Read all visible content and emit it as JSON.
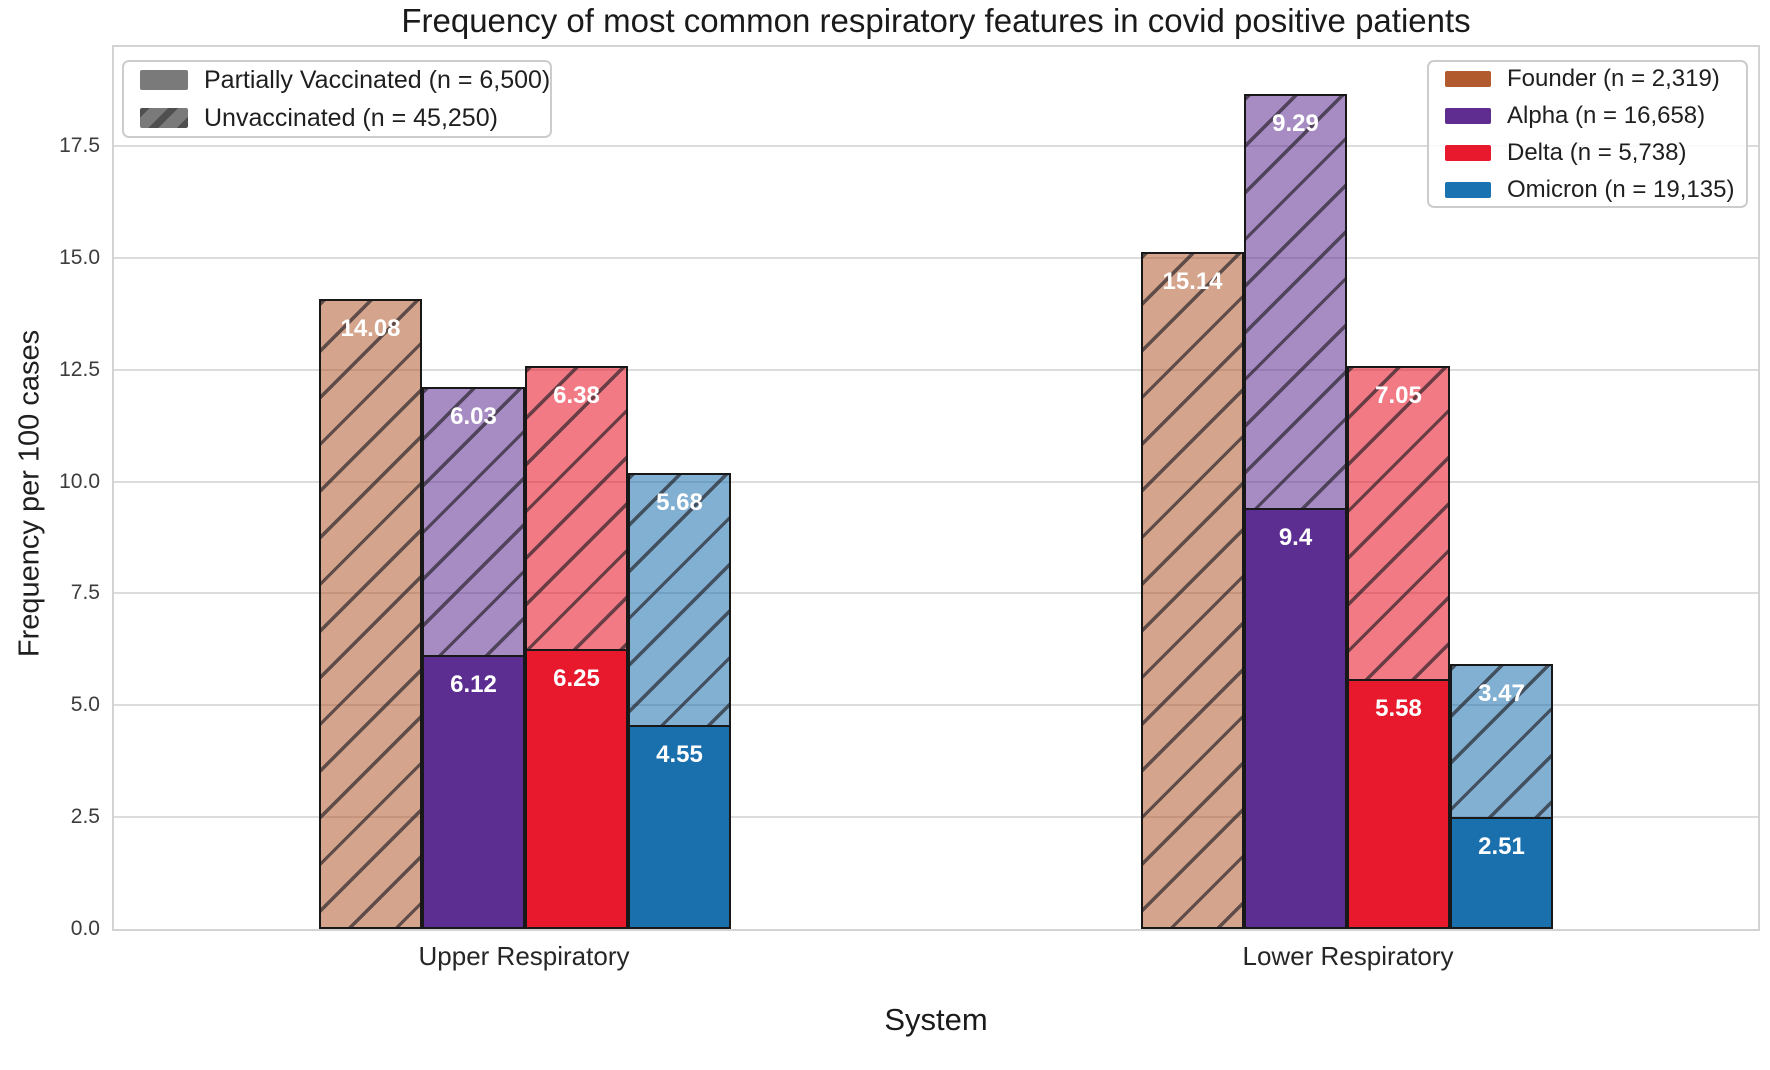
{
  "chart_data": {
    "type": "bar",
    "stacked": true,
    "title": "Frequency of most common respiratory features in covid positive patients",
    "xlabel": "System",
    "ylabel": "Frequency per 100 cases",
    "categories": [
      "Upper Respiratory",
      "Lower Respiratory"
    ],
    "ylim": [
      0,
      19.8
    ],
    "yticks": [
      0.0,
      2.5,
      5.0,
      7.5,
      10.0,
      12.5,
      15.0,
      17.5
    ],
    "grid": true,
    "legend_vaccination": {
      "items": [
        {
          "label": "Partially Vaccinated (n = 6,500)",
          "style": "solid",
          "color": "#7a7a7a"
        },
        {
          "label": "Unvaccinated (n = 45,250)",
          "style": "hatched",
          "color": "#7a7a7a"
        }
      ],
      "position": "upper-left"
    },
    "legend_variants": {
      "items": [
        {
          "label": "Founder (n = 2,319)",
          "color": "#b05a2e"
        },
        {
          "label": "Alpha (n = 16,658)",
          "color": "#5f2d90"
        },
        {
          "label": "Delta (n = 5,738)",
          "color": "#e8192c"
        },
        {
          "label": "Omicron (n = 19,135)",
          "color": "#1b72b0"
        }
      ],
      "position": "upper-right"
    },
    "series": [
      {
        "name": "Founder (n = 2,319)",
        "slug": "founder",
        "color": "#b05a2e",
        "hatch_fill": "rgba(176,90,46,0.55)",
        "partially_vaccinated": {
          "values": [
            0,
            0
          ],
          "labels": [
            null,
            null
          ]
        },
        "unvaccinated": {
          "values": [
            14.08,
            15.14
          ],
          "labels": [
            "14.08",
            "15.14"
          ]
        }
      },
      {
        "name": "Alpha (n = 16,658)",
        "slug": "alpha",
        "color": "#5c2e91",
        "hatch_fill": "rgba(92,46,145,0.55)",
        "partially_vaccinated": {
          "values": [
            6.12,
            9.4
          ],
          "labels": [
            "6.12",
            "9.4"
          ]
        },
        "unvaccinated": {
          "values": [
            6.03,
            9.29
          ],
          "labels": [
            "6.03",
            "9.29"
          ]
        }
      },
      {
        "name": "Delta (n = 5,738)",
        "slug": "delta",
        "color": "#e8192c",
        "hatch_fill": "rgba(232,25,44,0.58)",
        "partially_vaccinated": {
          "values": [
            6.25,
            5.58
          ],
          "labels": [
            "6.25",
            "5.58"
          ]
        },
        "unvaccinated": {
          "values": [
            6.38,
            7.05
          ],
          "labels": [
            "6.38",
            "7.05"
          ]
        }
      },
      {
        "name": "Omicron (n = 19,135)",
        "slug": "omicron",
        "color": "#1a6fad",
        "hatch_fill": "rgba(26,111,173,0.55)",
        "partially_vaccinated": {
          "values": [
            4.55,
            2.51
          ],
          "labels": [
            "4.55",
            "2.51"
          ]
        },
        "unvaccinated": {
          "values": [
            5.68,
            3.47
          ],
          "labels": [
            "5.68",
            "3.47"
          ]
        }
      }
    ],
    "styles": {
      "hatch_line_color": "rgba(33,28,35,0.65)",
      "bar_edge_color": "#181818",
      "grid_color": "#dcdcdc"
    }
  }
}
